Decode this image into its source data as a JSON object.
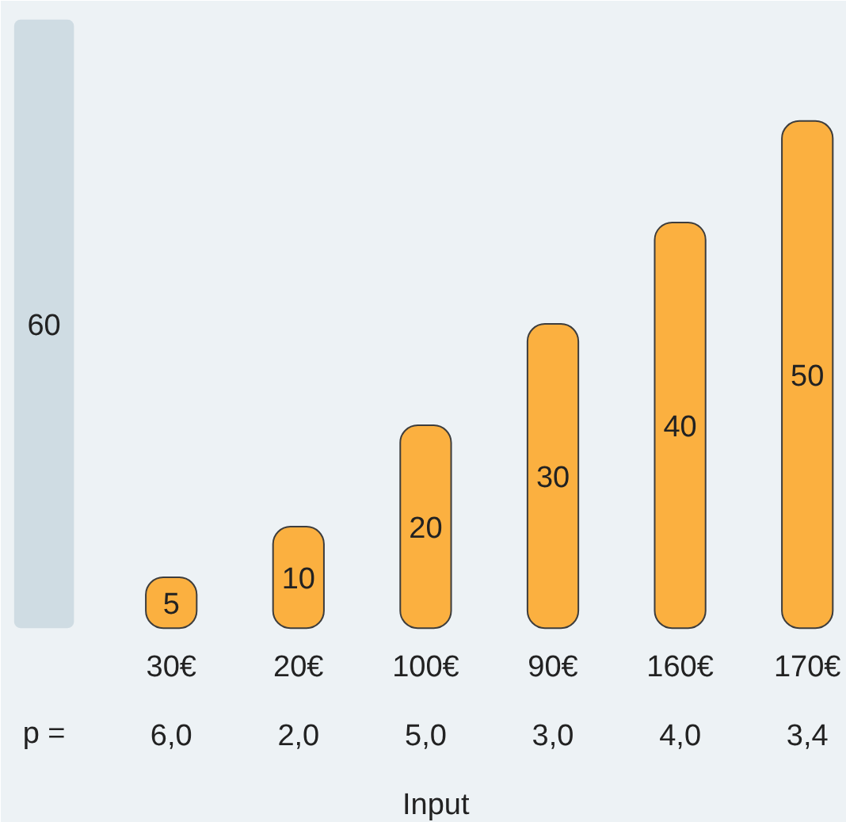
{
  "chart_data": {
    "type": "bar",
    "categories": [
      null,
      "30€",
      "20€",
      "100€",
      "90€",
      "160€",
      "170€"
    ],
    "values": [
      60,
      5,
      10,
      20,
      30,
      40,
      50
    ],
    "colors": [
      "#cfdce3",
      "#fbb040",
      "#fbb040",
      "#fbb040",
      "#fbb040",
      "#fbb040",
      "#fbb040"
    ],
    "data_labels": true,
    "xlabel": "Input",
    "annotations": [
      "p =",
      "6,0",
      "2,0",
      "5,0",
      "3,0",
      "4,0",
      "3,4"
    ]
  }
}
